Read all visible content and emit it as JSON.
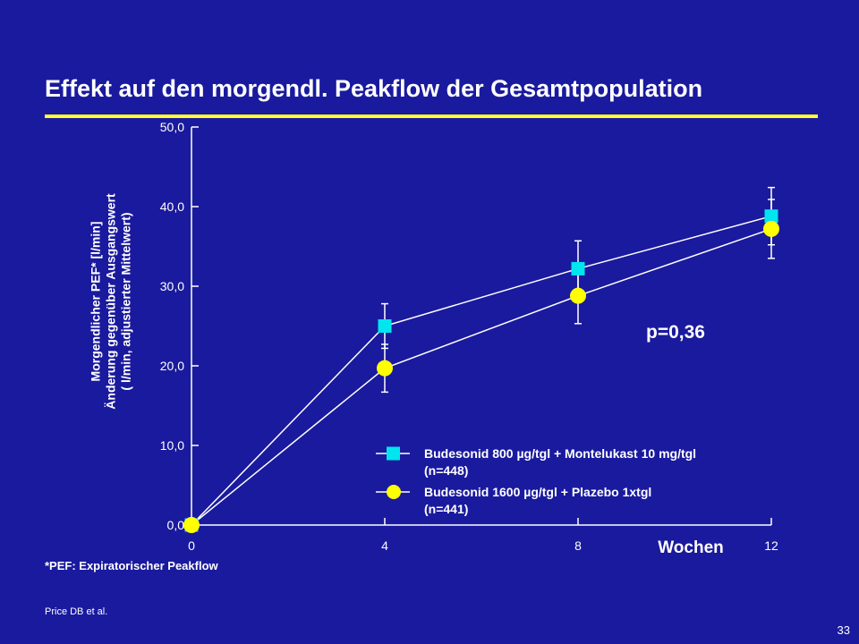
{
  "slide": {
    "title": "Effekt auf den morgendl. Peakflow der Gesamtpopulation",
    "footnote": "*PEF: Expiratorischer Peakflow",
    "source": "Price DB et al.",
    "page_number": "33",
    "accent_color": "#ffff33",
    "background_color": "#1a1a9e"
  },
  "chart_data": {
    "type": "line",
    "ylabel_lines": [
      "Morgendlicher PEF* [l/min]",
      "Änderung gegenüber Ausgangswert",
      "( l/min, adjustierter Mittelwert)"
    ],
    "xlabel": "Wochen",
    "x": [
      0,
      4,
      8,
      12
    ],
    "x_tick_labels": [
      "0",
      "4",
      "8",
      "12"
    ],
    "xlim": [
      0,
      12
    ],
    "ylim": [
      0,
      50
    ],
    "y_ticks": [
      0,
      10,
      20,
      30,
      40,
      50
    ],
    "y_tick_labels": [
      "0,0",
      "10,0",
      "20,0",
      "30,0",
      "40,0",
      "50,0"
    ],
    "annotation": "p=0,36",
    "series": [
      {
        "name": "Budesonid 800 µg/tgl + Montelukast 10 mg/tgl",
        "n_label": "(n=448)",
        "marker": "square",
        "color": "#00e5ee",
        "values": [
          0,
          25.0,
          32.2,
          38.8
        ],
        "errors": [
          0,
          2.8,
          3.5,
          3.6
        ]
      },
      {
        "name": "Budesonid 1600 µg/tgl + Plazebo 1xtgl",
        "n_label": "(n=441)",
        "marker": "circle",
        "color": "#ffff00",
        "values": [
          0,
          19.7,
          28.8,
          37.2
        ],
        "errors": [
          0,
          3.0,
          3.5,
          3.7
        ]
      }
    ]
  }
}
